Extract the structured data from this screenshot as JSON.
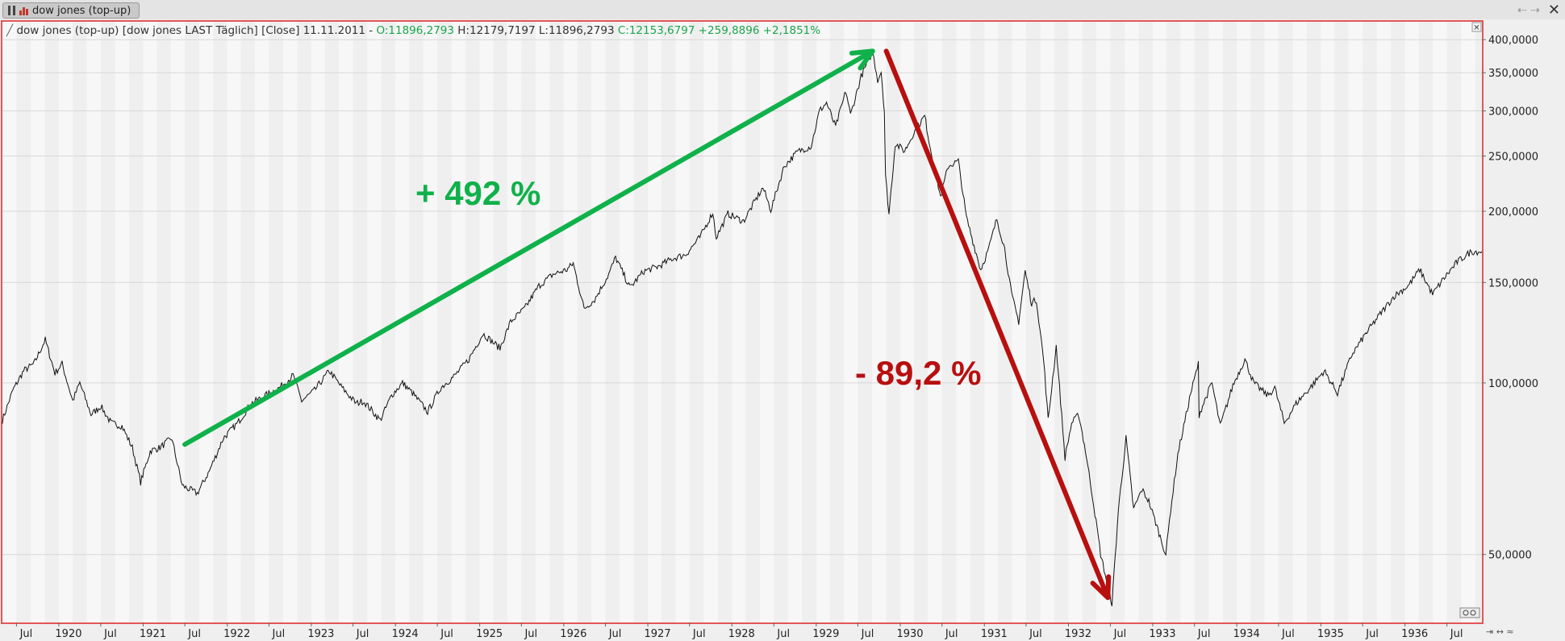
{
  "tab": {
    "label": "dow jones (top-up)"
  },
  "window": {
    "nav_glyphs": "⇠ ⇢",
    "close_glyph": "✕",
    "panel_close_glyph": "✕"
  },
  "header": {
    "prefix": "dow jones (top-up) [dow jones LAST Täglich] [Close] 11.11.2011 - ",
    "o": "O:11896,2793",
    "h": " H:12179,7197",
    "l": " L:11896,2793",
    "c": " C:12153,6797 +259,8896 +2,1851%"
  },
  "annotations": {
    "up_label": "+ 492 %",
    "down_label": "- 89,2 %",
    "up_color": "#0fb14a",
    "down_color": "#b80f0f"
  },
  "colors": {
    "header_green": "#1aa64a",
    "frame_red": "#e02424",
    "line": "#111111"
  },
  "chart_data": {
    "type": "line",
    "title": "dow jones (top-up)",
    "y_scale": "log",
    "ylim": [
      38,
      430
    ],
    "y_ticks": [
      {
        "value": 400,
        "label": "400,0000"
      },
      {
        "value": 350,
        "label": "350,0000"
      },
      {
        "value": 300,
        "label": "300,0000"
      },
      {
        "value": 250,
        "label": "250,0000"
      },
      {
        "value": 200,
        "label": "200,0000"
      },
      {
        "value": 150,
        "label": "150,0000"
      },
      {
        "value": 100,
        "label": "100,0000"
      },
      {
        "value": 50,
        "label": "50,0000"
      }
    ],
    "xlim": [
      "1919-05-01",
      "1936-11-30"
    ],
    "x_ticks": [
      {
        "date": "1919-07-01",
        "label": "Jul"
      },
      {
        "date": "1920-01-01",
        "label": "1920"
      },
      {
        "date": "1920-07-01",
        "label": "Jul"
      },
      {
        "date": "1921-01-01",
        "label": "1921"
      },
      {
        "date": "1921-07-01",
        "label": "Jul"
      },
      {
        "date": "1922-01-01",
        "label": "1922"
      },
      {
        "date": "1922-07-01",
        "label": "Jul"
      },
      {
        "date": "1923-01-01",
        "label": "1923"
      },
      {
        "date": "1923-07-01",
        "label": "Jul"
      },
      {
        "date": "1924-01-01",
        "label": "1924"
      },
      {
        "date": "1924-07-01",
        "label": "Jul"
      },
      {
        "date": "1925-01-01",
        "label": "1925"
      },
      {
        "date": "1925-07-01",
        "label": "Jul"
      },
      {
        "date": "1926-01-01",
        "label": "1926"
      },
      {
        "date": "1926-07-01",
        "label": "Jul"
      },
      {
        "date": "1927-01-01",
        "label": "1927"
      },
      {
        "date": "1927-07-01",
        "label": "Jul"
      },
      {
        "date": "1928-01-01",
        "label": "1928"
      },
      {
        "date": "1928-07-01",
        "label": "Jul"
      },
      {
        "date": "1929-01-01",
        "label": "1929"
      },
      {
        "date": "1929-07-01",
        "label": "Jul"
      },
      {
        "date": "1930-01-01",
        "label": "1930"
      },
      {
        "date": "1930-07-01",
        "label": "Jul"
      },
      {
        "date": "1931-01-01",
        "label": "1931"
      },
      {
        "date": "1931-07-01",
        "label": "Jul"
      },
      {
        "date": "1932-01-01",
        "label": "1932"
      },
      {
        "date": "1932-07-01",
        "label": "Jul"
      },
      {
        "date": "1933-01-01",
        "label": "1933"
      },
      {
        "date": "1933-07-01",
        "label": "Jul"
      },
      {
        "date": "1934-01-01",
        "label": "1934"
      },
      {
        "date": "1934-07-01",
        "label": "Jul"
      },
      {
        "date": "1935-01-01",
        "label": "1935"
      },
      {
        "date": "1935-07-01",
        "label": "Jul"
      },
      {
        "date": "1936-01-01",
        "label": "1936"
      },
      {
        "date": "1936-07-01",
        "label": "Jul"
      }
    ],
    "series": [
      {
        "points": [
          [
            "1919-05-01",
            86
          ],
          [
            "1919-06-15",
            97
          ],
          [
            "1919-08-01",
            105
          ],
          [
            "1919-09-15",
            108
          ],
          [
            "1919-11-03",
            119
          ],
          [
            "1919-12-15",
            104
          ],
          [
            "1920-01-15",
            108
          ],
          [
            "1920-03-01",
            93
          ],
          [
            "1920-04-01",
            100
          ],
          [
            "1920-05-20",
            88
          ],
          [
            "1920-07-01",
            91
          ],
          [
            "1920-08-15",
            85
          ],
          [
            "1920-10-01",
            84
          ],
          [
            "1920-11-15",
            77
          ],
          [
            "1920-12-21",
            67
          ],
          [
            "1921-02-01",
            76
          ],
          [
            "1921-03-15",
            77
          ],
          [
            "1921-05-05",
            80
          ],
          [
            "1921-06-20",
            66
          ],
          [
            "1921-08-24",
            64
          ],
          [
            "1921-10-15",
            70
          ],
          [
            "1921-12-15",
            80
          ],
          [
            "1922-02-15",
            85
          ],
          [
            "1922-04-15",
            92
          ],
          [
            "1922-06-15",
            95
          ],
          [
            "1922-08-15",
            98
          ],
          [
            "1922-10-14",
            103
          ],
          [
            "1922-11-20",
            93
          ],
          [
            "1923-01-15",
            97
          ],
          [
            "1923-03-20",
            105
          ],
          [
            "1923-05-15",
            98
          ],
          [
            "1923-07-15",
            92
          ],
          [
            "1923-08-15",
            93
          ],
          [
            "1923-10-27",
            86
          ],
          [
            "1923-12-15",
            95
          ],
          [
            "1924-02-01",
            100
          ],
          [
            "1924-03-15",
            96
          ],
          [
            "1924-05-20",
            89
          ],
          [
            "1924-07-15",
            98
          ],
          [
            "1924-09-15",
            103
          ],
          [
            "1924-11-15",
            110
          ],
          [
            "1925-01-15",
            122
          ],
          [
            "1925-03-30",
            115
          ],
          [
            "1925-05-15",
            128
          ],
          [
            "1925-07-15",
            135
          ],
          [
            "1925-09-15",
            148
          ],
          [
            "1925-11-15",
            155
          ],
          [
            "1926-01-15",
            158
          ],
          [
            "1926-02-11",
            162
          ],
          [
            "1926-03-30",
            135
          ],
          [
            "1926-05-15",
            140
          ],
          [
            "1926-07-15",
            155
          ],
          [
            "1926-08-14",
            166
          ],
          [
            "1926-10-15",
            147
          ],
          [
            "1926-12-15",
            157
          ],
          [
            "1927-02-15",
            160
          ],
          [
            "1927-04-15",
            165
          ],
          [
            "1927-06-15",
            168
          ],
          [
            "1927-08-15",
            180
          ],
          [
            "1927-10-10",
            199
          ],
          [
            "1927-10-25",
            180
          ],
          [
            "1927-12-15",
            198
          ],
          [
            "1928-02-20",
            192
          ],
          [
            "1928-04-15",
            210
          ],
          [
            "1928-05-15",
            220
          ],
          [
            "1928-06-18",
            201
          ],
          [
            "1928-08-15",
            240
          ],
          [
            "1928-10-15",
            255
          ],
          [
            "1928-12-10",
            260
          ],
          [
            "1929-01-15",
            300
          ],
          [
            "1929-02-15",
            310
          ],
          [
            "1929-03-26",
            281
          ],
          [
            "1929-05-10",
            325
          ],
          [
            "1929-05-30",
            295
          ],
          [
            "1929-07-15",
            345
          ],
          [
            "1929-09-03",
            381
          ],
          [
            "1929-09-25",
            340
          ],
          [
            "1929-10-10",
            352
          ],
          [
            "1929-10-24",
            299
          ],
          [
            "1929-10-29",
            230
          ],
          [
            "1929-11-13",
            198
          ],
          [
            "1929-12-10",
            263
          ],
          [
            "1930-01-20",
            255
          ],
          [
            "1930-03-01",
            275
          ],
          [
            "1930-04-17",
            294
          ],
          [
            "1930-05-10",
            260
          ],
          [
            "1930-06-25",
            212
          ],
          [
            "1930-07-28",
            240
          ],
          [
            "1930-09-10",
            245
          ],
          [
            "1930-10-15",
            195
          ],
          [
            "1930-12-16",
            158
          ],
          [
            "1931-01-20",
            172
          ],
          [
            "1931-02-24",
            194
          ],
          [
            "1931-03-30",
            172
          ],
          [
            "1931-04-29",
            143
          ],
          [
            "1931-05-30",
            128
          ],
          [
            "1931-06-27",
            157
          ],
          [
            "1931-07-25",
            138
          ],
          [
            "1931-08-15",
            140
          ],
          [
            "1931-09-15",
            110
          ],
          [
            "1931-10-05",
            86
          ],
          [
            "1931-11-09",
            116
          ],
          [
            "1931-12-17",
            74
          ],
          [
            "1932-01-15",
            85
          ],
          [
            "1932-02-15",
            88
          ],
          [
            "1932-03-15",
            76
          ],
          [
            "1932-04-15",
            63
          ],
          [
            "1932-05-20",
            50
          ],
          [
            "1932-07-08",
            41
          ],
          [
            "1932-08-05",
            60
          ],
          [
            "1932-09-07",
            80
          ],
          [
            "1932-10-10",
            60
          ],
          [
            "1932-11-15",
            65
          ],
          [
            "1932-12-15",
            62
          ],
          [
            "1933-02-27",
            50
          ],
          [
            "1933-03-20",
            60
          ],
          [
            "1933-04-20",
            75
          ],
          [
            "1933-06-15",
            96
          ],
          [
            "1933-07-18",
            108
          ],
          [
            "1933-07-21",
            88
          ],
          [
            "1933-09-15",
            100
          ],
          [
            "1933-10-21",
            84
          ],
          [
            "1933-12-15",
            99
          ],
          [
            "1934-02-05",
            110
          ],
          [
            "1934-03-15",
            100
          ],
          [
            "1934-05-15",
            95
          ],
          [
            "1934-06-15",
            98
          ],
          [
            "1934-07-26",
            85
          ],
          [
            "1934-09-15",
            92
          ],
          [
            "1934-11-15",
            98
          ],
          [
            "1935-01-15",
            105
          ],
          [
            "1935-03-14",
            96
          ],
          [
            "1935-05-15",
            112
          ],
          [
            "1935-07-15",
            122
          ],
          [
            "1935-09-15",
            132
          ],
          [
            "1935-11-15",
            142
          ],
          [
            "1936-01-15",
            148
          ],
          [
            "1936-03-05",
            158
          ],
          [
            "1936-04-30",
            143
          ],
          [
            "1936-06-15",
            152
          ],
          [
            "1936-08-15",
            163
          ],
          [
            "1936-10-15",
            170
          ],
          [
            "1936-11-30",
            170
          ]
        ]
      }
    ],
    "arrows": [
      {
        "name": "up-arrow",
        "from": [
          "1921-07-01",
          78
        ],
        "to": [
          "1929-09-03",
          382
        ]
      },
      {
        "name": "down-arrow",
        "from": [
          "1929-11-01",
          382
        ],
        "to": [
          "1932-06-20",
          42
        ]
      }
    ]
  }
}
